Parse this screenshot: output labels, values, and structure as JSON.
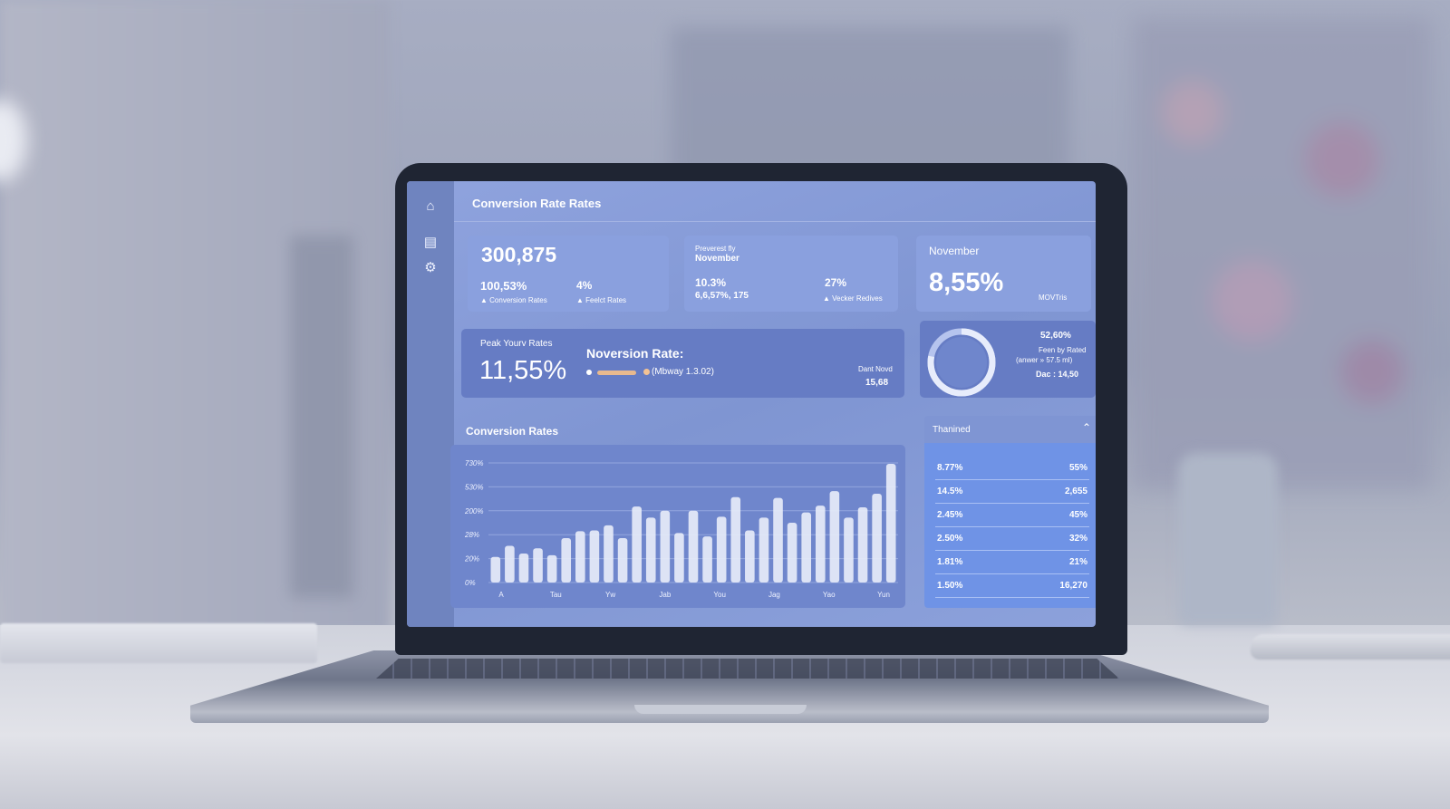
{
  "app": {
    "title": "Conversion Rate Rates"
  },
  "sidebar": {
    "icons": [
      "home-icon",
      "chart-icon",
      "gear-icon"
    ]
  },
  "kpi1": {
    "value": "300,875",
    "stat1_value": "100,53%",
    "stat1_label": "Conversion Rates",
    "stat2_value": "4%",
    "stat2_label": "Feelct Rates"
  },
  "kpi2": {
    "subtitle": "Preverest fly",
    "title": "November",
    "stat1_value": "10.3%",
    "stat1_sub": "6,6,57%, 175",
    "stat2_value": "27%",
    "stat2_label": "Vecker Redives"
  },
  "kpi3": {
    "title": "November",
    "value": "8,55%",
    "tag": "MOVTris"
  },
  "peak": {
    "label": "Peak Yourv Rates",
    "value": "11,55%",
    "heading": "Noversion Rate:",
    "progress_fraction": 0.62,
    "progress_label": "(Mbway 1.3.02)",
    "side_label": "Dant Novd",
    "side_value": "15,68"
  },
  "donut": {
    "value": "52,60%",
    "line1": "Feen by Rated",
    "line2": "(anwer » 57.5 ml)",
    "line3": "Dac : 14,50",
    "fraction": 0.78
  },
  "chart": {
    "section_title": "Conversion Rates"
  },
  "chart_data": {
    "type": "bar",
    "title": "Conversion Rates",
    "y_tick_labels": [
      "0%",
      "20%",
      "28%",
      "200%",
      "530%",
      "730%"
    ],
    "x_tick_labels": [
      "A",
      "Tau",
      "Yw",
      "Jab",
      "You",
      "Jag",
      "Yao",
      "Yun"
    ],
    "values": [
      30,
      43,
      34,
      40,
      32,
      52,
      60,
      61,
      67,
      52,
      89,
      76,
      84,
      58,
      84,
      54,
      77,
      100,
      61,
      76,
      99,
      70,
      82,
      90,
      107,
      76,
      88,
      104,
      139
    ]
  },
  "table": {
    "header": "Thanined",
    "rows": [
      {
        "left": "8.77%",
        "right": "55%"
      },
      {
        "left": "14.5%",
        "right": "2,655"
      },
      {
        "left": "2.45%",
        "right": "45%"
      },
      {
        "left": "2.50%",
        "right": "32%"
      },
      {
        "left": "1.81%",
        "right": "21%"
      },
      {
        "left": "1.50%",
        "right": "16,270"
      }
    ]
  },
  "colors": {
    "screen_bg": "#8fa3de",
    "card": "#8aa0de",
    "card_dark": "#667cc4",
    "bar": "#e6ebf8",
    "accent": "#e8b98e"
  }
}
